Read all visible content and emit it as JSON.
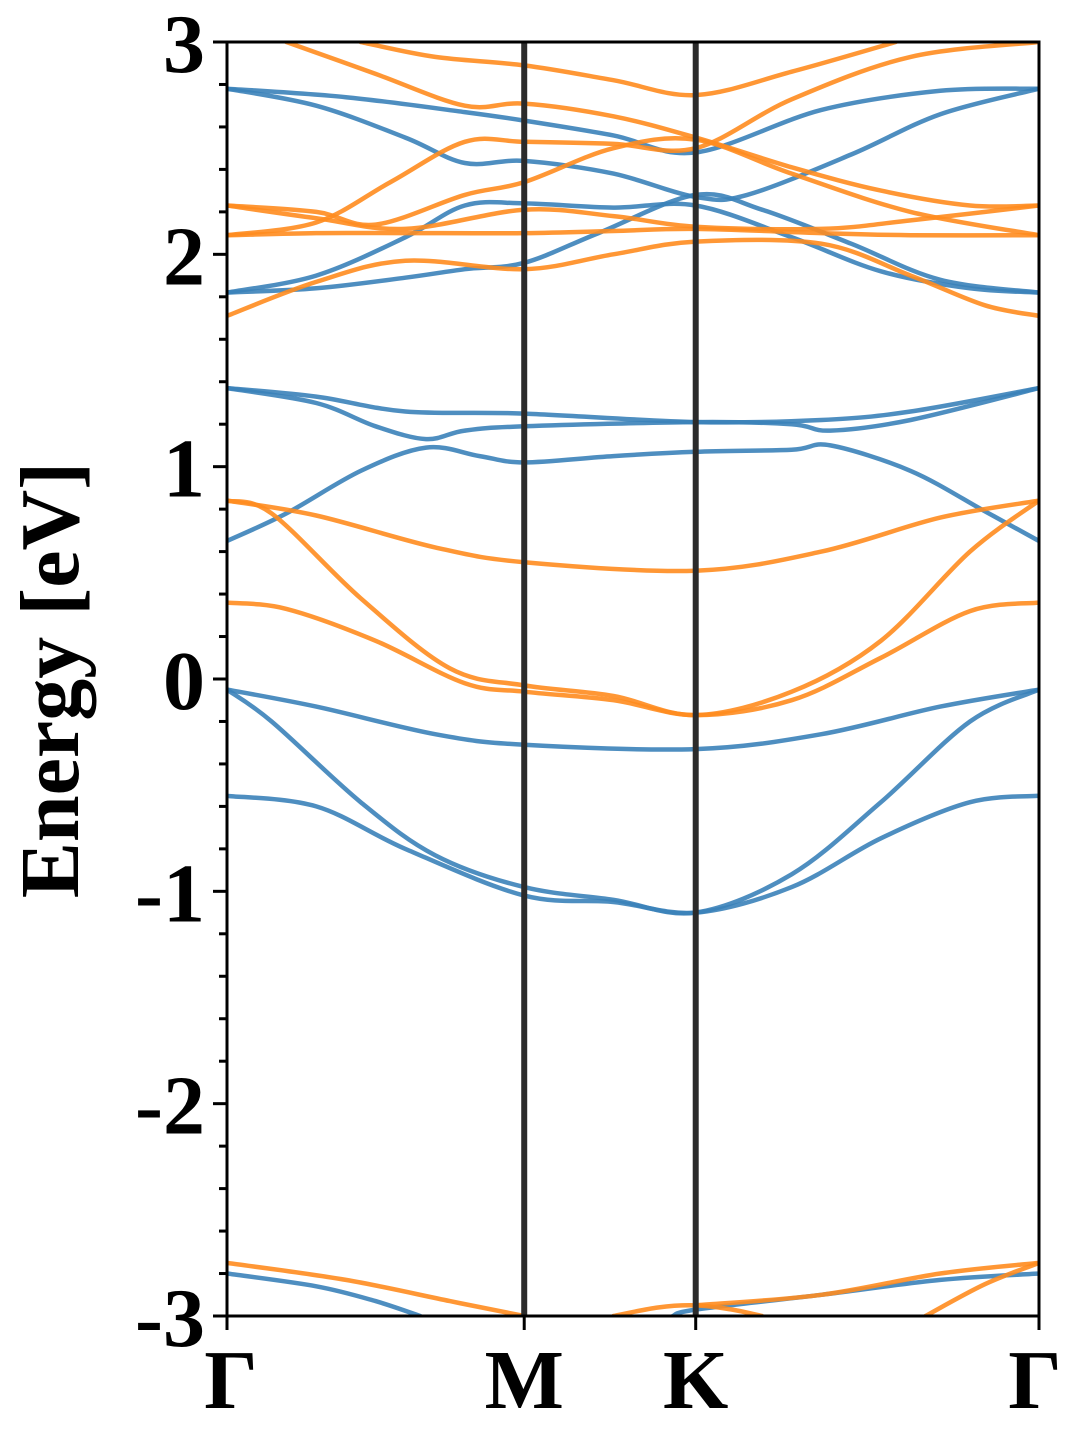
{
  "chart_data": {
    "type": "line",
    "title": "",
    "xlabel": "",
    "ylabel": "Energy [eV]",
    "ylim": [
      -3,
      3
    ],
    "yticks": [
      3,
      2,
      1,
      0,
      -1,
      -2,
      -3
    ],
    "ytick_labels": [
      "3",
      "2",
      "1",
      "0",
      "-1",
      "-2",
      "-3"
    ],
    "x_path": [
      "Γ",
      "M",
      "K",
      "Γ"
    ],
    "x_path_positions": [
      0,
      1,
      1.577,
      2.732
    ],
    "xlim": [
      0,
      2.732
    ],
    "grid": false,
    "legend": "none",
    "vertical_lines_at": [
      1,
      1.577
    ],
    "colors": {
      "blue": "#3b82b9",
      "orange": "#ff8c1f",
      "vline": "#2b2b2b"
    },
    "series": [
      {
        "color": "blue",
        "points": [
          [
            0,
            2.78
          ],
          [
            0.4,
            2.74
          ],
          [
            0.8,
            2.67
          ],
          [
            1.0,
            2.63
          ],
          [
            1.3,
            2.56
          ],
          [
            1.577,
            2.48
          ],
          [
            2.0,
            2.68
          ],
          [
            2.4,
            2.77
          ],
          [
            2.732,
            2.78
          ]
        ]
      },
      {
        "color": "blue",
        "points": [
          [
            0,
            2.78
          ],
          [
            0.3,
            2.7
          ],
          [
            0.6,
            2.55
          ],
          [
            0.8,
            2.43
          ],
          [
            1.0,
            2.44
          ],
          [
            1.3,
            2.38
          ],
          [
            1.577,
            2.27
          ],
          [
            1.75,
            2.28
          ],
          [
            2.1,
            2.47
          ],
          [
            2.4,
            2.66
          ],
          [
            2.732,
            2.78
          ]
        ]
      },
      {
        "color": "blue",
        "points": [
          [
            0,
            1.82
          ],
          [
            0.3,
            1.9
          ],
          [
            0.6,
            2.08
          ],
          [
            0.8,
            2.23
          ],
          [
            1.0,
            2.24
          ],
          [
            1.3,
            2.22
          ],
          [
            1.577,
            2.23
          ],
          [
            1.9,
            2.08
          ],
          [
            2.2,
            1.92
          ],
          [
            2.5,
            1.84
          ],
          [
            2.732,
            1.82
          ]
        ]
      },
      {
        "color": "blue",
        "points": [
          [
            0,
            1.82
          ],
          [
            0.3,
            1.84
          ],
          [
            0.6,
            1.89
          ],
          [
            0.8,
            1.93
          ],
          [
            1.0,
            1.96
          ],
          [
            1.25,
            2.1
          ],
          [
            1.577,
            2.28
          ],
          [
            1.8,
            2.21
          ],
          [
            2.1,
            2.05
          ],
          [
            2.4,
            1.88
          ],
          [
            2.732,
            1.82
          ]
        ]
      },
      {
        "color": "blue",
        "points": [
          [
            0,
            1.37
          ],
          [
            0.3,
            1.33
          ],
          [
            0.6,
            1.26
          ],
          [
            1.0,
            1.25
          ],
          [
            1.577,
            1.21
          ],
          [
            2.0,
            1.22
          ],
          [
            2.3,
            1.26
          ],
          [
            2.732,
            1.37
          ]
        ]
      },
      {
        "color": "blue",
        "points": [
          [
            0,
            1.37
          ],
          [
            0.3,
            1.3
          ],
          [
            0.5,
            1.19
          ],
          [
            0.67,
            1.13
          ],
          [
            0.8,
            1.17
          ],
          [
            1.0,
            1.19
          ],
          [
            1.577,
            1.21
          ],
          [
            1.9,
            1.2
          ],
          [
            2.03,
            1.17
          ],
          [
            2.3,
            1.22
          ],
          [
            2.732,
            1.37
          ]
        ]
      },
      {
        "color": "blue",
        "points": [
          [
            0,
            0.65
          ],
          [
            0.2,
            0.78
          ],
          [
            0.45,
            0.98
          ],
          [
            0.67,
            1.09
          ],
          [
            0.85,
            1.05
          ],
          [
            1.0,
            1.02
          ],
          [
            1.3,
            1.05
          ],
          [
            1.577,
            1.07
          ],
          [
            1.9,
            1.08
          ],
          [
            2.03,
            1.1
          ],
          [
            2.3,
            0.98
          ],
          [
            2.55,
            0.79
          ],
          [
            2.732,
            0.65
          ]
        ]
      },
      {
        "color": "blue",
        "points": [
          [
            0,
            -0.05
          ],
          [
            0.3,
            -0.13
          ],
          [
            0.7,
            -0.26
          ],
          [
            1.0,
            -0.31
          ],
          [
            1.577,
            -0.33
          ],
          [
            2.0,
            -0.26
          ],
          [
            2.4,
            -0.13
          ],
          [
            2.732,
            -0.05
          ]
        ]
      },
      {
        "color": "blue",
        "points": [
          [
            0,
            -0.05
          ],
          [
            0.15,
            -0.2
          ],
          [
            0.45,
            -0.58
          ],
          [
            0.7,
            -0.83
          ],
          [
            1.0,
            -0.98
          ],
          [
            1.3,
            -1.04
          ],
          [
            1.577,
            -1.1
          ],
          [
            1.9,
            -0.92
          ],
          [
            2.2,
            -0.58
          ],
          [
            2.5,
            -0.2
          ],
          [
            2.732,
            -0.05
          ]
        ]
      },
      {
        "color": "blue",
        "points": [
          [
            0,
            -0.55
          ],
          [
            0.3,
            -0.6
          ],
          [
            0.6,
            -0.8
          ],
          [
            1.0,
            -1.02
          ],
          [
            1.3,
            -1.05
          ],
          [
            1.577,
            -1.1
          ],
          [
            1.9,
            -0.98
          ],
          [
            2.2,
            -0.75
          ],
          [
            2.5,
            -0.58
          ],
          [
            2.732,
            -0.55
          ]
        ]
      },
      {
        "color": "blue",
        "points": [
          [
            0,
            -2.8
          ],
          [
            0.3,
            -2.86
          ],
          [
            0.5,
            -2.93
          ],
          [
            0.65,
            -3.0
          ]
        ]
      },
      {
        "color": "blue",
        "points": [
          [
            1.5,
            -3.0
          ],
          [
            1.577,
            -2.97
          ],
          [
            2.0,
            -2.9
          ],
          [
            2.4,
            -2.83
          ],
          [
            2.732,
            -2.8
          ]
        ]
      },
      {
        "color": "orange",
        "points": [
          [
            0.45,
            3.0
          ],
          [
            0.7,
            2.93
          ],
          [
            1.0,
            2.89
          ],
          [
            1.3,
            2.82
          ],
          [
            1.577,
            2.75
          ],
          [
            1.9,
            2.86
          ],
          [
            2.25,
            3.0
          ]
        ]
      },
      {
        "color": "orange",
        "points": [
          [
            0.2,
            3.0
          ],
          [
            0.5,
            2.85
          ],
          [
            0.8,
            2.7
          ],
          [
            1.0,
            2.71
          ],
          [
            1.3,
            2.65
          ],
          [
            1.577,
            2.55
          ],
          [
            1.9,
            2.41
          ],
          [
            2.2,
            2.3
          ],
          [
            2.5,
            2.23
          ],
          [
            2.732,
            2.23
          ]
        ]
      },
      {
        "color": "orange",
        "points": [
          [
            0,
            2.23
          ],
          [
            0.3,
            2.2
          ],
          [
            0.5,
            2.14
          ],
          [
            0.8,
            2.28
          ],
          [
            1.0,
            2.34
          ],
          [
            1.3,
            2.5
          ],
          [
            1.577,
            2.54
          ],
          [
            1.9,
            2.38
          ],
          [
            2.3,
            2.2
          ],
          [
            2.732,
            2.09
          ]
        ]
      },
      {
        "color": "orange",
        "points": [
          [
            0,
            2.09
          ],
          [
            0.3,
            2.15
          ],
          [
            0.55,
            2.34
          ],
          [
            0.8,
            2.53
          ],
          [
            1.0,
            2.53
          ],
          [
            1.3,
            2.52
          ],
          [
            1.577,
            2.5
          ],
          [
            1.9,
            2.73
          ],
          [
            2.3,
            2.93
          ],
          [
            2.732,
            3.0
          ]
        ]
      },
      {
        "color": "orange",
        "points": [
          [
            0,
            2.23
          ],
          [
            0.3,
            2.17
          ],
          [
            0.6,
            2.12
          ],
          [
            1.0,
            2.21
          ],
          [
            1.3,
            2.18
          ],
          [
            1.577,
            2.13
          ],
          [
            2.0,
            2.12
          ],
          [
            2.3,
            2.16
          ],
          [
            2.732,
            2.23
          ]
        ]
      },
      {
        "color": "orange",
        "points": [
          [
            0,
            2.09
          ],
          [
            0.3,
            2.1
          ],
          [
            0.6,
            2.1
          ],
          [
            1.0,
            2.1
          ],
          [
            1.3,
            2.11
          ],
          [
            1.577,
            2.12
          ],
          [
            2.0,
            2.1
          ],
          [
            2.3,
            2.09
          ],
          [
            2.732,
            2.09
          ]
        ]
      },
      {
        "color": "orange",
        "points": [
          [
            0,
            1.71
          ],
          [
            0.3,
            1.87
          ],
          [
            0.6,
            1.97
          ],
          [
            1.0,
            1.93
          ],
          [
            1.3,
            2.0
          ],
          [
            1.577,
            2.06
          ],
          [
            2.0,
            2.05
          ],
          [
            2.3,
            1.9
          ],
          [
            2.55,
            1.76
          ],
          [
            2.732,
            1.71
          ]
        ]
      },
      {
        "color": "orange",
        "points": [
          [
            0,
            0.84
          ],
          [
            0.3,
            0.77
          ],
          [
            0.7,
            0.62
          ],
          [
            1.0,
            0.55
          ],
          [
            1.577,
            0.51
          ],
          [
            2.0,
            0.6
          ],
          [
            2.4,
            0.76
          ],
          [
            2.732,
            0.84
          ]
        ]
      },
      {
        "color": "orange",
        "points": [
          [
            0,
            0.84
          ],
          [
            0.15,
            0.78
          ],
          [
            0.45,
            0.38
          ],
          [
            0.75,
            0.05
          ],
          [
            1.0,
            -0.03
          ],
          [
            1.3,
            -0.08
          ],
          [
            1.577,
            -0.17
          ],
          [
            1.9,
            -0.06
          ],
          [
            2.2,
            0.18
          ],
          [
            2.5,
            0.6
          ],
          [
            2.732,
            0.84
          ]
        ]
      },
      {
        "color": "orange",
        "points": [
          [
            0,
            0.36
          ],
          [
            0.2,
            0.33
          ],
          [
            0.5,
            0.18
          ],
          [
            0.8,
            -0.02
          ],
          [
            1.0,
            -0.06
          ],
          [
            1.3,
            -0.1
          ],
          [
            1.577,
            -0.17
          ],
          [
            1.9,
            -0.1
          ],
          [
            2.2,
            0.1
          ],
          [
            2.5,
            0.32
          ],
          [
            2.732,
            0.36
          ]
        ]
      },
      {
        "color": "orange",
        "points": [
          [
            0,
            -2.75
          ],
          [
            0.4,
            -2.83
          ],
          [
            0.75,
            -2.93
          ],
          [
            1.0,
            -3.0
          ]
        ]
      },
      {
        "color": "orange",
        "points": [
          [
            1.3,
            -3.0
          ],
          [
            1.45,
            -2.96
          ],
          [
            1.577,
            -2.95
          ],
          [
            1.7,
            -2.97
          ],
          [
            1.8,
            -3.0
          ]
        ]
      },
      {
        "color": "orange",
        "points": [
          [
            1.577,
            -2.95
          ],
          [
            2.0,
            -2.9
          ],
          [
            2.4,
            -2.8
          ],
          [
            2.732,
            -2.75
          ]
        ]
      },
      {
        "color": "orange",
        "points": [
          [
            2.35,
            -3.0
          ],
          [
            2.55,
            -2.85
          ],
          [
            2.732,
            -2.75
          ]
        ]
      }
    ]
  }
}
